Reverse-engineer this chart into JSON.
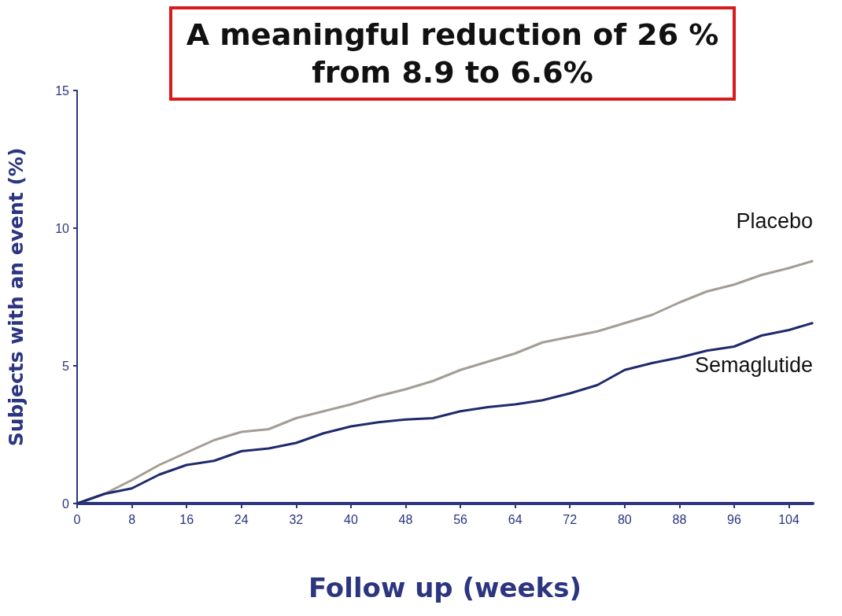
{
  "chart_data": {
    "type": "line",
    "title": "A meaningful reduction of 26 %\nfrom 8.9 to 6.6%",
    "xlabel": "Follow up (weeks)",
    "ylabel": "Subjects with an event (%)",
    "xlim": [
      0,
      107.5
    ],
    "xticks": [
      0,
      8,
      16,
      24,
      32,
      40,
      48,
      56,
      64,
      72,
      80,
      88,
      96,
      104
    ],
    "ylim": [
      0,
      15
    ],
    "yticks": [
      0,
      5,
      10,
      15
    ],
    "grid": false,
    "marker": "none",
    "line_style": "solid",
    "series": [
      {
        "name": "Placebo",
        "color": "#a39d93",
        "x": [
          0,
          4,
          8,
          12,
          16,
          20,
          24,
          28,
          32,
          36,
          40,
          44,
          48,
          52,
          56,
          60,
          64,
          68,
          72,
          76,
          80,
          84,
          88,
          92,
          96,
          100,
          104,
          107.4
        ],
        "values": [
          0,
          0.35,
          0.85,
          1.4,
          1.85,
          2.3,
          2.6,
          2.7,
          3.1,
          3.35,
          3.6,
          3.9,
          4.15,
          4.45,
          4.85,
          5.15,
          5.45,
          5.85,
          6.05,
          6.25,
          6.55,
          6.85,
          7.3,
          7.7,
          7.95,
          8.3,
          8.55,
          8.8
        ]
      },
      {
        "name": "Semaglutide",
        "color": "#1f2a6b",
        "x": [
          0,
          4,
          8,
          12,
          16,
          20,
          24,
          28,
          32,
          36,
          40,
          44,
          48,
          52,
          56,
          60,
          64,
          68,
          72,
          76,
          80,
          84,
          88,
          92,
          96,
          100,
          104,
          107.4
        ],
        "values": [
          0,
          0.35,
          0.55,
          1.05,
          1.4,
          1.55,
          1.9,
          2.0,
          2.2,
          2.55,
          2.8,
          2.95,
          3.05,
          3.1,
          3.35,
          3.5,
          3.6,
          3.75,
          4.0,
          4.3,
          4.85,
          5.1,
          5.3,
          5.55,
          5.7,
          6.1,
          6.3,
          6.55
        ]
      }
    ]
  }
}
